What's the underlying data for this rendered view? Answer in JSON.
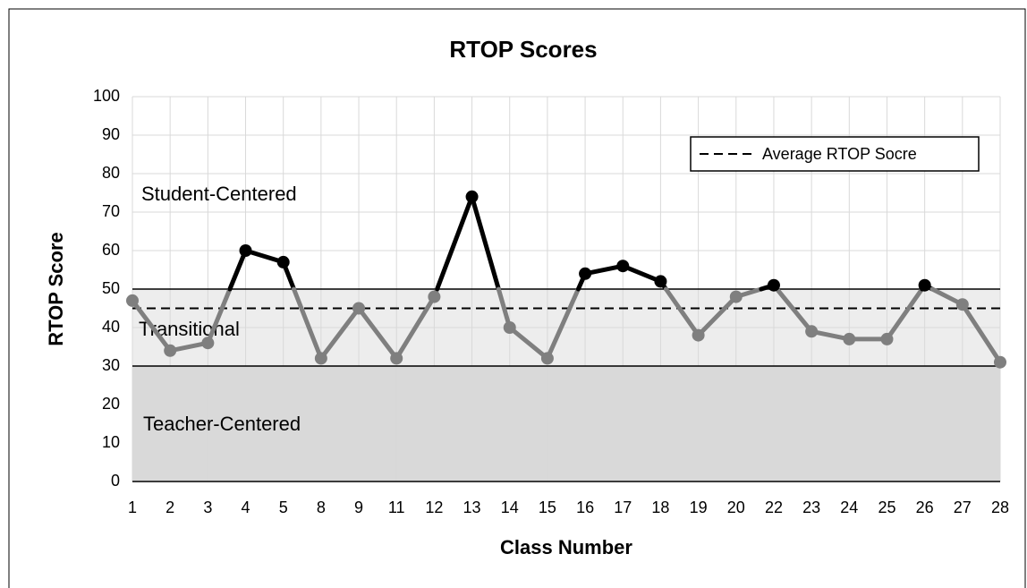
{
  "chart_data": {
    "type": "line",
    "title": "RTOP Scores",
    "xlabel": "Class Number",
    "ylabel": "RTOP Score",
    "categories": [
      "1",
      "2",
      "3",
      "4",
      "5",
      "8",
      "9",
      "11",
      "12",
      "13",
      "14",
      "15",
      "16",
      "17",
      "18",
      "19",
      "20",
      "22",
      "23",
      "24",
      "25",
      "26",
      "27",
      "28"
    ],
    "series": [
      {
        "name": "RTOP Score",
        "color": "#7f7f7f",
        "highlight_color": "#000000",
        "values": [
          47,
          34,
          36,
          60,
          57,
          32,
          45,
          32,
          48,
          74,
          40,
          32,
          54,
          56,
          52,
          38,
          48,
          51,
          39,
          37,
          37,
          51,
          46,
          31
        ]
      }
    ],
    "average": {
      "name": "Average RTOP Socre",
      "value": 45,
      "color": "#000000"
    },
    "bands": [
      {
        "label": "Teacher-Centered",
        "from": 0,
        "to": 30,
        "color": "#d9d9d9"
      },
      {
        "label": "Transitional",
        "from": 30,
        "to": 50,
        "color": "#ededed"
      },
      {
        "label": "Student-Centered",
        "from": 50,
        "to": 100,
        "color": "#ffffff"
      }
    ],
    "ylim": [
      0,
      100
    ],
    "yticks": [
      0,
      10,
      20,
      30,
      40,
      50,
      60,
      70,
      80,
      90,
      100
    ],
    "grid": true,
    "legend": "upper right"
  }
}
